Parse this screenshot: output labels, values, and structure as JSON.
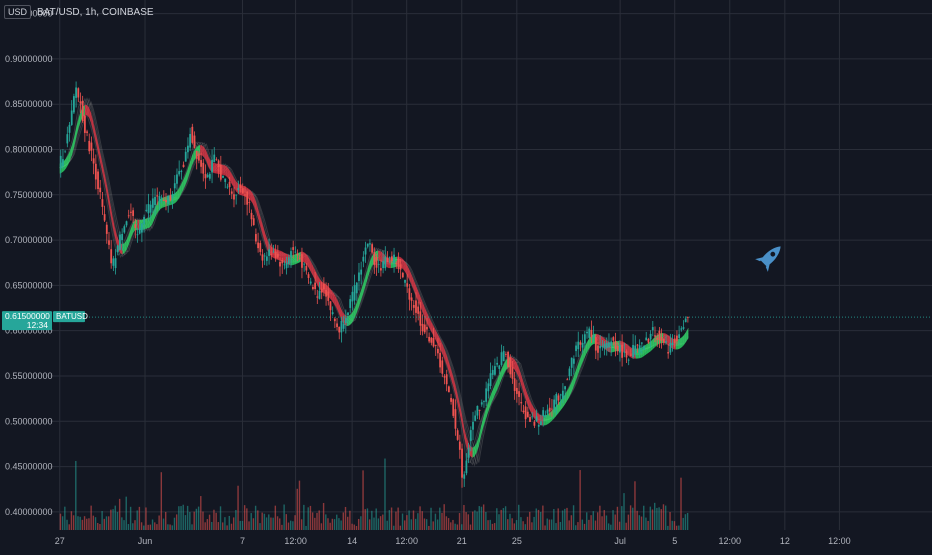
{
  "header": {
    "currency_button": "USD",
    "symbol_title": "BAT/USD, 1h, COINBASE"
  },
  "price_tag": {
    "value": "0.61500000",
    "symbol": "BATUSD",
    "countdown": "12:34"
  },
  "colors": {
    "background": "#131722",
    "grid": "#2a2e39",
    "text": "#b2b5be",
    "ribbon_up": "#2ee86b",
    "ribbon_down": "#f23645",
    "candle_up": "#26a69a",
    "candle_down": "#ef5350",
    "price_tag_bg": "#26a69a",
    "rocket": "#4a90c8"
  },
  "icons": {
    "watermark": "rocket-icon"
  },
  "chart_data": {
    "type": "line",
    "title": "BAT/USD, 1h, COINBASE",
    "xlabel": "",
    "ylabel": "",
    "ylim": [
      0.38,
      0.965
    ],
    "y_ticks": [
      0.4,
      0.45,
      0.5,
      0.55,
      0.6,
      0.65,
      0.7,
      0.75,
      0.8,
      0.85,
      0.9,
      0.95
    ],
    "y_tick_labels": [
      "0.40000000",
      "0.45000000",
      "0.50000000",
      "0.55000000",
      "0.60000000",
      "0.65000000",
      "0.70000000",
      "0.75000000",
      "0.80000000",
      "0.85000000",
      "0.90000000",
      "0.95000000"
    ],
    "x_range": [
      -0.2,
      17.9
    ],
    "x_ticks": [
      {
        "t": 0,
        "label": "27"
      },
      {
        "t": 1.75,
        "label": "Jun"
      },
      {
        "t": 3.75,
        "label": "7"
      },
      {
        "t": 4.84,
        "label": "12:00"
      },
      {
        "t": 6.0,
        "label": "14"
      },
      {
        "t": 7.12,
        "label": "12:00"
      },
      {
        "t": 8.25,
        "label": "21"
      },
      {
        "t": 9.38,
        "label": "25"
      },
      {
        "t": 11.5,
        "label": "Jul"
      },
      {
        "t": 12.62,
        "label": "5"
      },
      {
        "t": 13.75,
        "label": "12:00"
      },
      {
        "t": 14.88,
        "label": "12"
      },
      {
        "t": 16.0,
        "label": "12:00"
      }
    ],
    "grid": true,
    "last_price": 0.615,
    "series": [
      {
        "values": [
          [
            0.0,
            0.78
          ],
          [
            0.12,
            0.8
          ],
          [
            0.25,
            0.83
          ],
          [
            0.35,
            0.87
          ],
          [
            0.45,
            0.85
          ],
          [
            0.55,
            0.82
          ],
          [
            0.7,
            0.79
          ],
          [
            0.85,
            0.75
          ],
          [
            1.0,
            0.7
          ],
          [
            1.1,
            0.67
          ],
          [
            1.2,
            0.69
          ],
          [
            1.35,
            0.72
          ],
          [
            1.5,
            0.73
          ],
          [
            1.6,
            0.7
          ],
          [
            1.75,
            0.73
          ],
          [
            1.9,
            0.74
          ],
          [
            2.0,
            0.75
          ],
          [
            2.15,
            0.74
          ],
          [
            2.3,
            0.75
          ],
          [
            2.45,
            0.77
          ],
          [
            2.6,
            0.79
          ],
          [
            2.7,
            0.82
          ],
          [
            2.8,
            0.8
          ],
          [
            2.95,
            0.78
          ],
          [
            3.05,
            0.77
          ],
          [
            3.2,
            0.79
          ],
          [
            3.35,
            0.77
          ],
          [
            3.45,
            0.76
          ],
          [
            3.6,
            0.75
          ],
          [
            3.75,
            0.76
          ],
          [
            3.9,
            0.74
          ],
          [
            4.05,
            0.7
          ],
          [
            4.2,
            0.68
          ],
          [
            4.4,
            0.69
          ],
          [
            4.6,
            0.67
          ],
          [
            4.8,
            0.69
          ],
          [
            4.95,
            0.68
          ],
          [
            5.1,
            0.66
          ],
          [
            5.3,
            0.64
          ],
          [
            5.45,
            0.65
          ],
          [
            5.6,
            0.62
          ],
          [
            5.75,
            0.6
          ],
          [
            5.9,
            0.62
          ],
          [
            6.05,
            0.64
          ],
          [
            6.2,
            0.67
          ],
          [
            6.35,
            0.7
          ],
          [
            6.45,
            0.68
          ],
          [
            6.6,
            0.67
          ],
          [
            6.75,
            0.68
          ],
          [
            6.9,
            0.68
          ],
          [
            7.05,
            0.66
          ],
          [
            7.2,
            0.64
          ],
          [
            7.35,
            0.62
          ],
          [
            7.5,
            0.6
          ],
          [
            7.65,
            0.59
          ],
          [
            7.8,
            0.57
          ],
          [
            7.95,
            0.54
          ],
          [
            8.1,
            0.51
          ],
          [
            8.25,
            0.46
          ],
          [
            8.3,
            0.43
          ],
          [
            8.4,
            0.47
          ],
          [
            8.55,
            0.51
          ],
          [
            8.7,
            0.52
          ],
          [
            8.85,
            0.55
          ],
          [
            9.0,
            0.56
          ],
          [
            9.15,
            0.58
          ],
          [
            9.25,
            0.56
          ],
          [
            9.4,
            0.53
          ],
          [
            9.55,
            0.51
          ],
          [
            9.7,
            0.5
          ],
          [
            9.85,
            0.5
          ],
          [
            10.0,
            0.51
          ],
          [
            10.15,
            0.52
          ],
          [
            10.3,
            0.53
          ],
          [
            10.45,
            0.55
          ],
          [
            10.6,
            0.58
          ],
          [
            10.75,
            0.59
          ],
          [
            10.9,
            0.6
          ],
          [
            11.05,
            0.58
          ],
          [
            11.2,
            0.58
          ],
          [
            11.35,
            0.59
          ],
          [
            11.5,
            0.58
          ],
          [
            11.65,
            0.57
          ],
          [
            11.8,
            0.58
          ],
          [
            11.95,
            0.58
          ],
          [
            12.1,
            0.59
          ],
          [
            12.2,
            0.6
          ],
          [
            12.35,
            0.59
          ],
          [
            12.5,
            0.58
          ],
          [
            12.65,
            0.59
          ],
          [
            12.8,
            0.6
          ],
          [
            12.9,
            0.615
          ]
        ]
      }
    ],
    "annotations": [
      "rocket-icon"
    ]
  }
}
